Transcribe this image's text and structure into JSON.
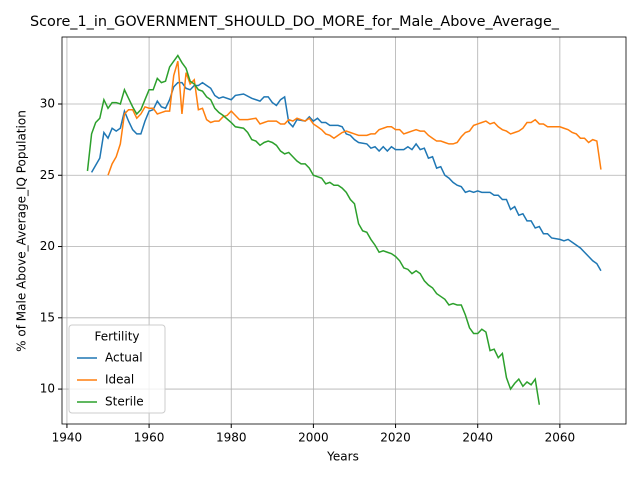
{
  "chart_data": {
    "type": "line",
    "title": "Score_1_in_GOVERNMENT_SHOULD_DO_MORE_for_Male_Above_Average_",
    "x_label": "Years",
    "y_label": "% of Male Above_Average_IQ Population",
    "legend_title": "Fertility",
    "legend": "lower left",
    "grid": true,
    "xlim": [
      1938.8,
      2076.1
    ],
    "xticks": [
      1940,
      1960,
      1980,
      2000,
      2020,
      2040,
      2060
    ],
    "ylim": [
      7.55,
      34.7
    ],
    "yticks": [
      10,
      15,
      20,
      25,
      30
    ],
    "series": [
      {
        "name": "Actual",
        "color": "#1f77b4",
        "x": [
          1946,
          1948,
          1949,
          1950,
          1951,
          1952,
          1953,
          1954,
          1955,
          1956,
          1957,
          1958,
          1959,
          1960,
          1961,
          1962,
          1963,
          1964,
          1965,
          1966,
          1967,
          1968,
          1969,
          1970,
          1971,
          1972,
          1973,
          1974,
          1975,
          1976,
          1977,
          1978,
          1980,
          1981,
          1983,
          1985,
          1987,
          1988,
          1989,
          1990,
          1991,
          1992,
          1993,
          1994,
          1995,
          1996,
          1998,
          1999,
          2000,
          2001,
          2002,
          2003,
          2004,
          2006,
          2007,
          2008,
          2009,
          2010,
          2011,
          2013,
          2014,
          2015,
          2016,
          2017,
          2018,
          2019,
          2020,
          2022,
          2023,
          2024,
          2025,
          2026,
          2027,
          2028,
          2029,
          2030,
          2031,
          2032,
          2033,
          2034,
          2035,
          2036,
          2037,
          2038,
          2039,
          2040,
          2041,
          2043,
          2044,
          2045,
          2046,
          2047,
          2048,
          2049,
          2050,
          2051,
          2052,
          2053,
          2054,
          2055,
          2056,
          2057,
          2058,
          2060,
          2061,
          2062,
          2063,
          2064,
          2065,
          2066,
          2067,
          2068,
          2069,
          2070
        ],
        "values": [
          25.2,
          26.2,
          28.0,
          27.6,
          28.3,
          28.1,
          28.3,
          29.5,
          28.8,
          28.2,
          27.9,
          27.9,
          28.8,
          29.5,
          29.6,
          30.2,
          29.8,
          29.7,
          30.3,
          31.2,
          31.5,
          31.5,
          31.1,
          31.0,
          31.3,
          31.3,
          31.5,
          31.3,
          31.1,
          30.6,
          30.4,
          30.5,
          30.3,
          30.6,
          30.7,
          30.4,
          30.2,
          30.5,
          30.5,
          30.1,
          29.9,
          30.3,
          30.5,
          28.7,
          28.4,
          28.9,
          28.8,
          29.1,
          28.8,
          29.0,
          28.7,
          28.7,
          28.5,
          28.5,
          28.4,
          27.9,
          27.8,
          27.5,
          27.3,
          27.2,
          26.9,
          27.0,
          26.7,
          27.0,
          26.7,
          27.0,
          26.8,
          26.8,
          27.0,
          26.8,
          27.2,
          26.8,
          26.9,
          26.2,
          26.3,
          25.5,
          25.6,
          25.0,
          24.8,
          24.5,
          24.3,
          24.2,
          23.8,
          23.9,
          23.8,
          23.9,
          23.8,
          23.8,
          23.6,
          23.6,
          23.3,
          23.3,
          22.6,
          22.8,
          22.2,
          22.3,
          21.8,
          21.8,
          21.3,
          21.4,
          20.9,
          20.9,
          20.6,
          20.5,
          20.4,
          20.5,
          20.3,
          20.1,
          19.9,
          19.6,
          19.3,
          19.0,
          18.8,
          18.3
        ]
      },
      {
        "name": "Ideal",
        "color": "#ff7f0e",
        "x": [
          1950,
          1951,
          1952,
          1953,
          1954,
          1955,
          1956,
          1957,
          1958,
          1959,
          1960,
          1961,
          1962,
          1963,
          1964,
          1965,
          1966,
          1967,
          1968,
          1969,
          1970,
          1971,
          1972,
          1973,
          1974,
          1975,
          1976,
          1977,
          1978,
          1979,
          1980,
          1981,
          1982,
          1984,
          1986,
          1987,
          1988,
          1989,
          1990,
          1991,
          1992,
          1993,
          1994,
          1995,
          1996,
          1997,
          1998,
          1999,
          2000,
          2001,
          2002,
          2003,
          2004,
          2005,
          2006,
          2007,
          2008,
          2009,
          2010,
          2011,
          2013,
          2014,
          2015,
          2016,
          2017,
          2018,
          2019,
          2020,
          2021,
          2022,
          2023,
          2024,
          2025,
          2026,
          2027,
          2028,
          2029,
          2030,
          2031,
          2032,
          2033,
          2034,
          2035,
          2036,
          2037,
          2038,
          2039,
          2040,
          2041,
          2042,
          2043,
          2044,
          2045,
          2046,
          2047,
          2048,
          2049,
          2050,
          2051,
          2052,
          2053,
          2054,
          2055,
          2056,
          2057,
          2058,
          2060,
          2061,
          2062,
          2063,
          2064,
          2065,
          2066,
          2067,
          2068,
          2069,
          2070
        ],
        "values": [
          25.0,
          25.8,
          26.3,
          27.2,
          29.3,
          29.6,
          29.6,
          29.0,
          29.3,
          29.8,
          29.7,
          29.7,
          29.3,
          29.4,
          29.5,
          29.5,
          32.0,
          33.0,
          29.3,
          32.2,
          31.4,
          31.7,
          29.6,
          29.7,
          28.9,
          28.7,
          28.8,
          28.8,
          29.1,
          29.2,
          29.5,
          29.2,
          28.9,
          28.9,
          29.0,
          28.6,
          28.7,
          28.8,
          28.8,
          28.8,
          28.6,
          28.6,
          28.9,
          28.8,
          29.0,
          28.9,
          28.8,
          29.0,
          28.6,
          28.4,
          28.2,
          27.9,
          27.8,
          27.6,
          27.8,
          28.0,
          28.1,
          28.0,
          27.9,
          27.8,
          27.8,
          27.9,
          27.9,
          28.2,
          28.3,
          28.4,
          28.4,
          28.2,
          28.2,
          27.9,
          28.0,
          28.1,
          28.2,
          28.1,
          28.1,
          27.8,
          27.6,
          27.4,
          27.4,
          27.3,
          27.2,
          27.2,
          27.3,
          27.7,
          28.0,
          28.1,
          28.5,
          28.6,
          28.7,
          28.8,
          28.6,
          28.7,
          28.4,
          28.2,
          28.1,
          27.9,
          28.0,
          28.1,
          28.3,
          28.7,
          28.7,
          28.9,
          28.6,
          28.6,
          28.4,
          28.4,
          28.4,
          28.3,
          28.2,
          28.0,
          27.9,
          27.6,
          27.6,
          27.3,
          27.5,
          27.4,
          25.4
        ]
      },
      {
        "name": "Sterile",
        "color": "#2ca02c",
        "x": [
          1945,
          1946,
          1947,
          1948,
          1949,
          1950,
          1951,
          1952,
          1953,
          1954,
          1955,
          1956,
          1957,
          1958,
          1959,
          1960,
          1961,
          1962,
          1963,
          1964,
          1965,
          1966,
          1967,
          1968,
          1969,
          1970,
          1971,
          1972,
          1973,
          1974,
          1975,
          1976,
          1977,
          1978,
          1980,
          1981,
          1983,
          1984,
          1985,
          1986,
          1987,
          1988,
          1989,
          1990,
          1991,
          1992,
          1993,
          1994,
          1995,
          1996,
          1997,
          1998,
          1999,
          2000,
          2001,
          2002,
          2003,
          2004,
          2005,
          2006,
          2007,
          2008,
          2009,
          2010,
          2011,
          2012,
          2013,
          2014,
          2015,
          2016,
          2017,
          2018,
          2019,
          2020,
          2021,
          2022,
          2023,
          2024,
          2025,
          2026,
          2027,
          2028,
          2029,
          2030,
          2031,
          2032,
          2033,
          2034,
          2035,
          2036,
          2037,
          2038,
          2039,
          2040,
          2041,
          2042,
          2043,
          2044,
          2045,
          2046,
          2047,
          2048,
          2049,
          2050,
          2051,
          2052,
          2053,
          2054,
          2055
        ],
        "values": [
          25.3,
          27.9,
          28.7,
          29.0,
          30.3,
          29.7,
          30.1,
          30.1,
          30.0,
          31.0,
          30.4,
          29.8,
          29.3,
          29.6,
          30.3,
          31.0,
          31.0,
          31.8,
          31.5,
          31.6,
          32.6,
          33.0,
          33.4,
          32.9,
          32.5,
          31.6,
          31.4,
          31.0,
          30.9,
          30.5,
          30.3,
          29.7,
          29.4,
          29.2,
          28.7,
          28.4,
          28.3,
          28.0,
          27.5,
          27.4,
          27.1,
          27.3,
          27.4,
          27.3,
          27.1,
          26.7,
          26.5,
          26.6,
          26.3,
          26.0,
          25.8,
          25.8,
          25.5,
          25.0,
          24.9,
          24.8,
          24.4,
          24.5,
          24.3,
          24.3,
          24.1,
          23.8,
          23.3,
          23.0,
          21.6,
          21.1,
          21.0,
          20.5,
          20.1,
          19.6,
          19.7,
          19.6,
          19.5,
          19.3,
          19.0,
          18.5,
          18.4,
          18.1,
          18.3,
          18.1,
          17.6,
          17.3,
          17.1,
          16.7,
          16.5,
          16.3,
          15.9,
          16.0,
          15.9,
          15.9,
          15.2,
          14.3,
          13.9,
          13.9,
          14.2,
          14.0,
          12.7,
          12.8,
          12.2,
          12.5,
          10.8,
          10.0,
          10.4,
          10.7,
          10.2,
          10.5,
          10.3,
          10.7,
          8.9
        ]
      }
    ]
  }
}
